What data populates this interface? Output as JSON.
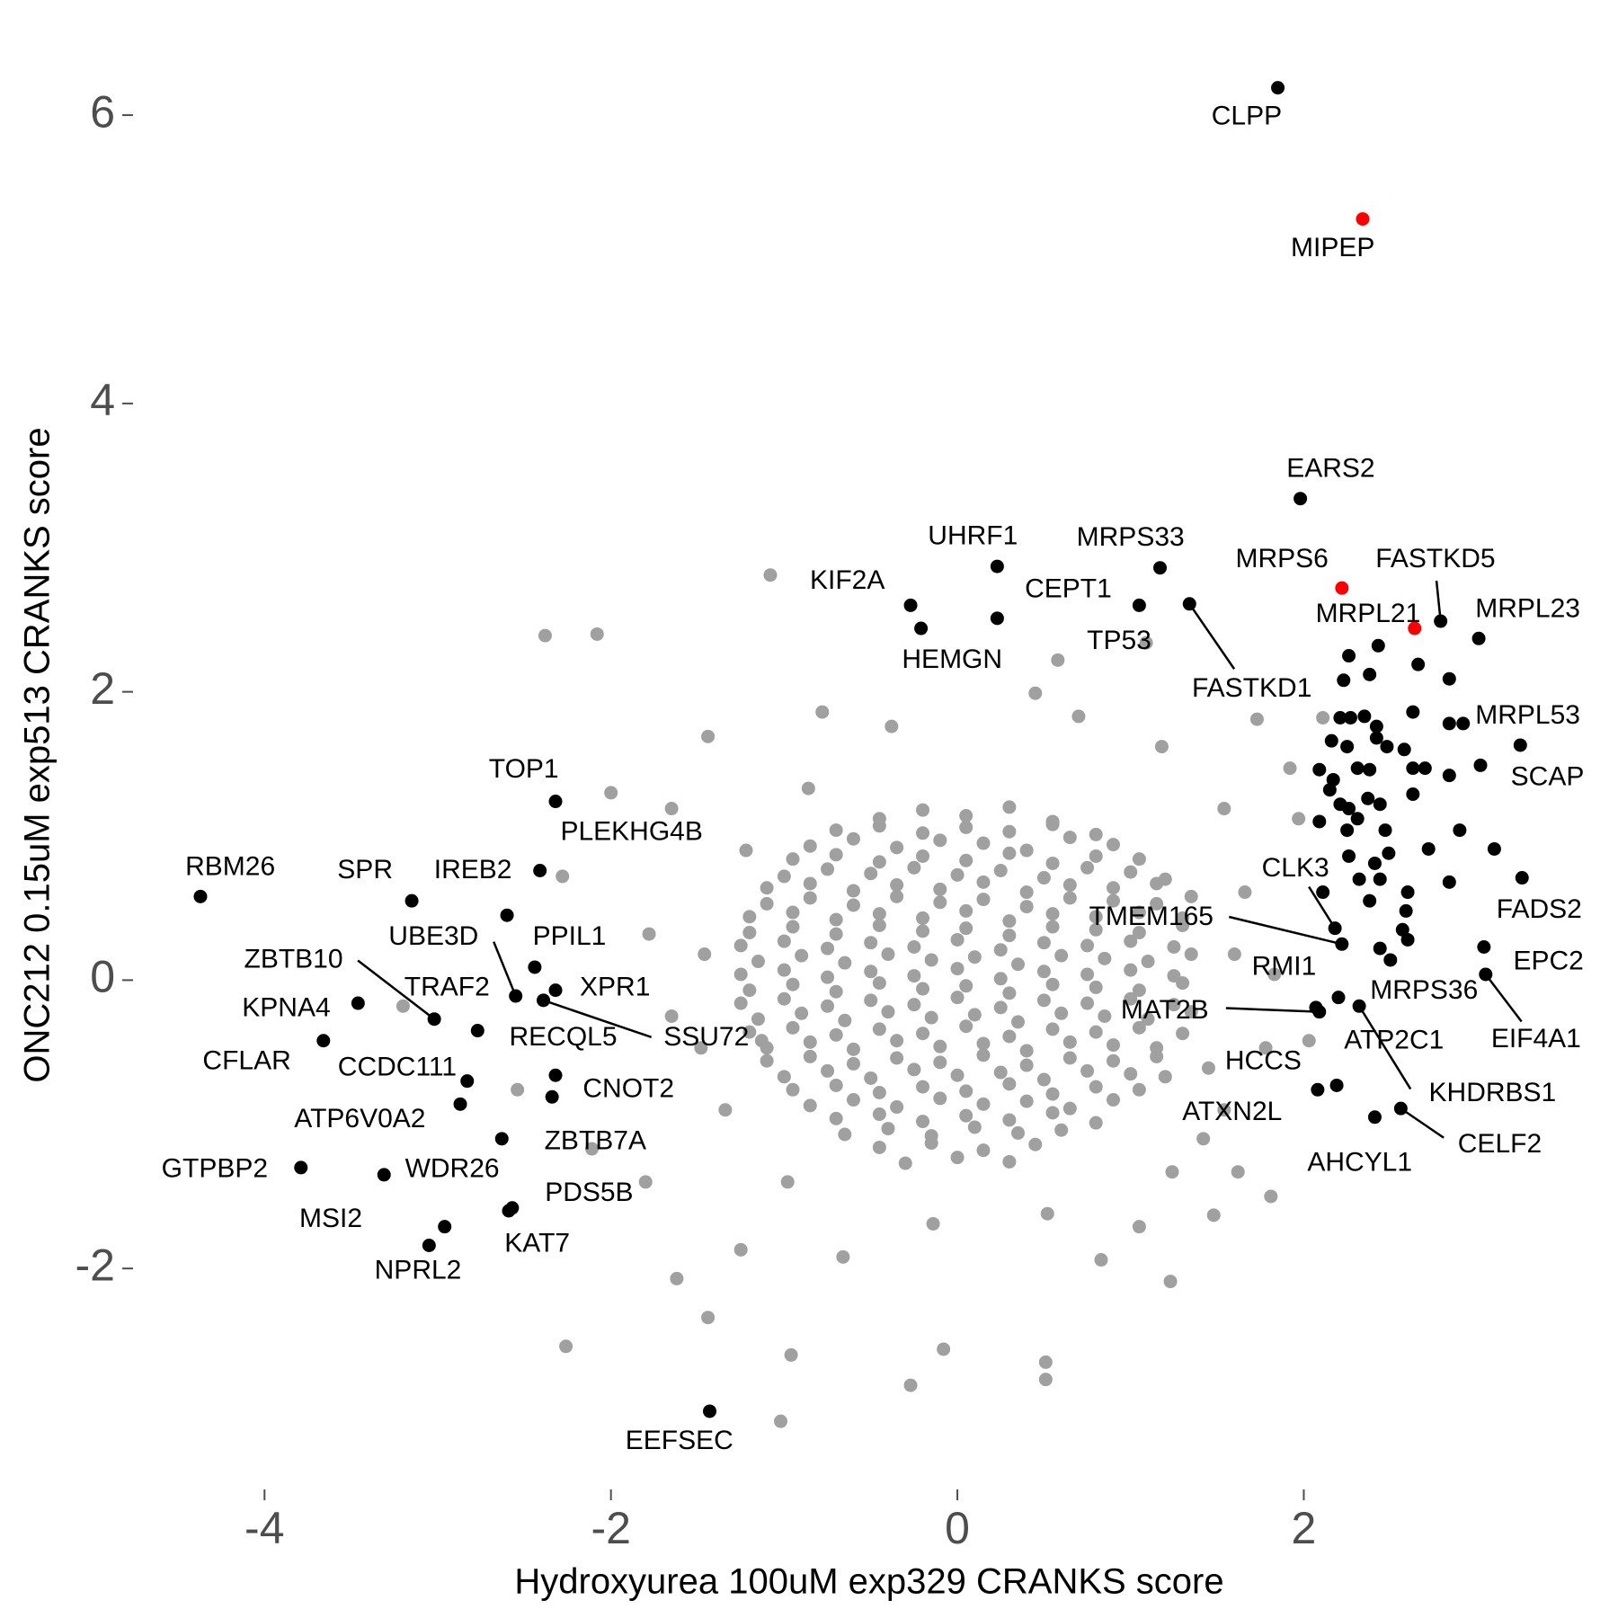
{
  "chart_data": {
    "type": "scatter",
    "xlabel": "Hydroxyurea 100uM exp329 CRANKS score",
    "ylabel": "ONC212 0.15uM exp513 CRANKS score",
    "xlim": [
      -4.7,
      3.65
    ],
    "ylim": [
      -3.4,
      6.5
    ],
    "xticks": [
      -4,
      -2,
      0,
      2
    ],
    "yticks": [
      -2,
      0,
      2,
      4,
      6
    ],
    "grid": false,
    "series": [
      {
        "color": "#a0a0a0",
        "x": [
          -0.45,
          -0.2,
          0.05,
          0.3,
          0.55,
          -0.85,
          -0.6,
          -0.35,
          -0.1,
          0.15,
          0.4,
          0.65,
          0.9,
          -1.0,
          -0.75,
          -0.5,
          -0.25,
          0,
          0.25,
          0.5,
          0.75,
          1.0,
          1.2,
          -1.1,
          -0.85,
          -0.6,
          -0.35,
          -0.1,
          0.15,
          0.4,
          0.65,
          0.9,
          1.15,
          1.35,
          -1.2,
          -0.95,
          -0.7,
          -0.45,
          -0.2,
          0.05,
          0.3,
          0.55,
          0.8,
          1.05,
          1.3,
          -1.15,
          -0.9,
          -0.65,
          -0.4,
          -0.15,
          0.1,
          0.35,
          0.6,
          0.85,
          1.1,
          1.35,
          -1.2,
          -0.95,
          -0.7,
          -0.45,
          -0.2,
          0.05,
          0.3,
          0.55,
          0.8,
          1.05,
          1.3,
          -1.15,
          -0.9,
          -0.65,
          -0.4,
          -0.15,
          0.1,
          0.35,
          0.6,
          0.85,
          1.1,
          1.35,
          -1.1,
          -0.85,
          -0.6,
          -0.35,
          -0.1,
          0.15,
          0.4,
          0.65,
          0.9,
          1.15,
          -1.0,
          -0.75,
          -0.5,
          -0.25,
          0,
          0.25,
          0.5,
          0.75,
          1.0,
          1.2,
          -0.85,
          -0.6,
          -0.35,
          -0.1,
          0.15,
          0.4,
          0.65,
          0.9,
          -0.65,
          -0.4,
          -0.15,
          0.1,
          0.35,
          0.6,
          -0.3,
          0,
          0.3,
          -0.7,
          -0.45,
          -0.2,
          0.05,
          0.3,
          0.55,
          0.8,
          -0.95,
          -0.7,
          -0.45,
          -0.2,
          0.05,
          0.3,
          0.55,
          0.8,
          1.05,
          -1.1,
          -0.85,
          -0.6,
          -0.35,
          -0.1,
          0.15,
          0.4,
          0.65,
          0.9,
          1.15,
          -1.2,
          -0.95,
          -0.7,
          -0.45,
          -0.2,
          0.05,
          0.3,
          0.55,
          0.8,
          1.05,
          1.3,
          -1.25,
          -1.0,
          -0.75,
          -0.5,
          -0.25,
          0,
          0.25,
          0.5,
          0.75,
          1.0,
          1.25,
          -1.25,
          -1.0,
          -0.75,
          -0.5,
          -0.25,
          0,
          0.25,
          0.5,
          0.75,
          1.0,
          1.25,
          -1.25,
          -1.0,
          -0.75,
          -0.5,
          -0.25,
          0,
          0.25,
          0.5,
          0.75,
          1.0,
          1.25,
          -1.2,
          -0.95,
          -0.7,
          -0.45,
          -0.2,
          0.05,
          0.3,
          0.55,
          0.8,
          1.05,
          1.3,
          -1.1,
          -0.85,
          -0.6,
          -0.35,
          -0.1,
          0.15,
          0.4,
          0.65,
          0.9,
          1.15,
          -0.95,
          -0.7,
          -0.45,
          -0.2,
          0.05,
          0.3,
          0.55,
          0.8,
          1.05,
          -0.7,
          -0.45,
          -0.2,
          0.05,
          0.3,
          0.55,
          0.8,
          -0.45,
          -0.15,
          0.15,
          0.45,
          -1.08,
          -2.38,
          -2.08,
          1.09,
          0.58,
          0.45,
          -0.78,
          -1.44,
          1.73,
          1.92,
          -2.0,
          -1.65,
          -2.28,
          -3.2,
          -2.54,
          -2.11,
          -1.8,
          -1.62,
          -2.26,
          -1.44,
          -0.96,
          -1.02,
          -0.27,
          -0.08,
          0.51,
          0.51,
          1.23,
          1.81,
          1.62,
          1.42,
          2.03,
          1.83,
          1.97,
          1.66,
          2.11,
          -1.25,
          -0.66,
          0.83,
          1.48,
          1.05,
          -1.13,
          -1.48,
          -1.78,
          -1.65,
          1.54,
          1.45,
          1.54,
          -1.22,
          -0.86,
          -0.38,
          0.7,
          1.18,
          1.6,
          -1.46,
          -1.34,
          -0.98,
          -0.14,
          0.52,
          1.24,
          1.78
        ],
        "values": [
          1.12,
          1.18,
          1.14,
          1.2,
          1.1,
          0.93,
          0.98,
          0.92,
          0.97,
          0.95,
          0.9,
          0.99,
          0.94,
          0.72,
          0.77,
          0.74,
          0.78,
          0.73,
          0.76,
          0.71,
          0.78,
          0.75,
          0.7,
          0.53,
          0.57,
          0.52,
          0.58,
          0.54,
          0.56,
          0.51,
          0.57,
          0.55,
          0.53,
          0.58,
          0.33,
          0.37,
          0.32,
          0.38,
          0.34,
          0.36,
          0.31,
          0.37,
          0.35,
          0.33,
          0.38,
          0.13,
          0.17,
          0.12,
          0.18,
          0.14,
          0.16,
          0.11,
          0.17,
          0.15,
          0.13,
          0.18,
          -0.07,
          -0.03,
          -0.08,
          -0.02,
          -0.06,
          -0.04,
          -0.09,
          -0.03,
          -0.05,
          -0.07,
          -0.02,
          -0.27,
          -0.23,
          -0.28,
          -0.22,
          -0.26,
          -0.24,
          -0.29,
          -0.23,
          -0.25,
          -0.27,
          -0.22,
          -0.47,
          -0.43,
          -0.48,
          -0.42,
          -0.46,
          -0.44,
          -0.49,
          -0.43,
          -0.45,
          -0.47,
          -0.67,
          -0.63,
          -0.68,
          -0.62,
          -0.66,
          -0.64,
          -0.69,
          -0.63,
          -0.65,
          -0.67,
          -0.87,
          -0.83,
          -0.88,
          -0.82,
          -0.86,
          -0.84,
          -0.89,
          -0.83,
          -1.07,
          -1.03,
          -1.08,
          -1.02,
          -1.06,
          -1.04,
          -1.27,
          -1.23,
          -1.26,
          1.04,
          1.07,
          1.02,
          1.06,
          1.03,
          1.08,
          1.01,
          0.84,
          0.87,
          0.82,
          0.86,
          0.83,
          0.88,
          0.81,
          0.86,
          0.84,
          0.64,
          0.67,
          0.62,
          0.66,
          0.63,
          0.68,
          0.61,
          0.66,
          0.64,
          0.67,
          0.44,
          0.47,
          0.42,
          0.46,
          0.43,
          0.48,
          0.41,
          0.46,
          0.44,
          0.47,
          0.43,
          0.24,
          0.27,
          0.22,
          0.26,
          0.23,
          0.28,
          0.21,
          0.26,
          0.24,
          0.27,
          0.23,
          0.04,
          0.07,
          0.02,
          0.06,
          0.03,
          0.08,
          0.01,
          0.06,
          0.04,
          0.07,
          0.03,
          -0.16,
          -0.13,
          -0.18,
          -0.14,
          -0.17,
          -0.12,
          -0.19,
          -0.14,
          -0.16,
          -0.13,
          -0.17,
          -0.36,
          -0.33,
          -0.38,
          -0.34,
          -0.37,
          -0.32,
          -0.39,
          -0.34,
          -0.36,
          -0.33,
          -0.37,
          -0.56,
          -0.53,
          -0.58,
          -0.54,
          -0.57,
          -0.52,
          -0.59,
          -0.54,
          -0.56,
          -0.53,
          -0.76,
          -0.73,
          -0.78,
          -0.74,
          -0.77,
          -0.72,
          -0.79,
          -0.74,
          -0.76,
          -0.96,
          -0.93,
          -0.98,
          -0.94,
          -0.97,
          -0.92,
          -0.99,
          -1.16,
          -1.13,
          -1.18,
          -1.14,
          2.81,
          2.39,
          2.4,
          2.34,
          2.22,
          1.99,
          1.86,
          1.69,
          1.81,
          1.47,
          1.3,
          1.19,
          0.72,
          -0.18,
          -0.76,
          -1.17,
          -1.4,
          -2.07,
          -2.54,
          -2.34,
          -2.6,
          -3.06,
          -2.81,
          -2.56,
          -2.65,
          -2.77,
          -2.09,
          -1.5,
          -1.33,
          -1.1,
          -0.42,
          0.04,
          1.12,
          0.61,
          1.82,
          -1.87,
          -1.92,
          -1.94,
          -1.63,
          -1.71,
          -0.42,
          -0.47,
          0.32,
          -0.25,
          1.19,
          -0.61,
          -0.9,
          0.9,
          1.33,
          1.76,
          1.83,
          1.62,
          0.18,
          0.18,
          -0.9,
          -1.4,
          -1.69,
          -1.62,
          -1.33,
          -0.47
        ]
      },
      {
        "color": "#000000",
        "x": [
          2.26,
          2.43,
          2.23,
          2.38,
          2.66,
          2.84,
          2.21,
          2.27,
          2.35,
          2.42,
          2.16,
          2.25,
          2.42,
          2.48,
          2.58,
          2.63,
          2.84,
          2.7,
          2.63,
          2.84,
          3.02,
          2.09,
          2.17,
          2.31,
          2.38,
          2.15,
          2.21,
          2.26,
          2.37,
          2.44,
          2.63,
          2.09,
          2.25,
          2.31,
          2.47,
          2.9,
          2.72,
          2.26,
          2.41,
          2.49,
          2.84,
          3.1,
          2.32,
          2.44,
          2.6,
          2.59,
          2.57,
          2.6,
          2.11,
          2.38,
          2.5
        ],
        "values": [
          2.25,
          2.32,
          2.08,
          2.12,
          2.19,
          2.09,
          1.82,
          1.82,
          1.83,
          1.76,
          1.66,
          1.62,
          1.68,
          1.62,
          1.6,
          1.86,
          1.78,
          1.47,
          1.47,
          1.42,
          1.49,
          1.46,
          1.39,
          1.47,
          1.46,
          1.32,
          1.22,
          1.19,
          1.26,
          1.22,
          1.29,
          1.1,
          1.04,
          1.12,
          1.04,
          1.04,
          0.91,
          0.86,
          0.81,
          0.88,
          0.68,
          0.91,
          0.7,
          0.7,
          0.61,
          0.48,
          0.35,
          0.28,
          0.61,
          0.55,
          0.14
        ]
      },
      {
        "color": "#000000",
        "x": [
          1.85,
          1.98,
          0.23,
          1.17,
          -0.27,
          0.23,
          1.05,
          1.34,
          -0.21,
          2.79,
          3.01,
          2.92,
          3.25,
          3.26,
          3.04,
          3.05,
          2.18,
          2.22,
          2.44,
          2.2,
          2.09,
          2.07,
          2.32,
          2.08,
          2.19,
          2.41,
          2.56,
          -2.32,
          -2.41,
          -4.37,
          -3.15,
          -2.6,
          -2.55,
          -2.44,
          -3.02,
          -2.77,
          -2.32,
          -2.39,
          -2.32,
          -2.34,
          -3.46,
          -3.66,
          -2.83,
          -2.87,
          -2.63,
          -3.79,
          -3.31,
          -2.57,
          -2.59,
          -2.96,
          -3.05,
          -1.43
        ],
        "values": [
          6.19,
          3.34,
          2.87,
          2.86,
          2.6,
          2.51,
          2.6,
          2.61,
          2.44,
          2.49,
          2.37,
          1.78,
          1.63,
          0.71,
          0.23,
          0.04,
          0.36,
          0.25,
          0.22,
          -0.12,
          -0.22,
          -0.19,
          -0.18,
          -0.76,
          -0.73,
          -0.95,
          -0.89,
          1.24,
          0.76,
          0.58,
          0.55,
          0.45,
          -0.11,
          0.09,
          -0.27,
          -0.35,
          -0.07,
          -0.14,
          -0.66,
          -0.81,
          -0.16,
          -0.42,
          -0.7,
          -0.86,
          -1.1,
          -1.3,
          -1.35,
          -1.58,
          -1.6,
          -1.71,
          -1.84,
          -2.99
        ],
        "labels": [
          "CLPP",
          "EARS2",
          "UHRF1",
          "MRPS33",
          "KIF2A",
          "CEPT1",
          "TP53",
          "FASTKD1",
          "HEMGN",
          "FASTKD5",
          "MRPL23",
          "MRPL53",
          "SCAP",
          "FADS2",
          "EPC2",
          "EIF4A1",
          "CLK3",
          "TMEM165",
          "RMI1",
          "MRPS36",
          "MAT2B",
          "ATP2C1",
          "KHDRBS1",
          "HCCS",
          "ATXN2L",
          "AHCYL1",
          "CELF2",
          "TOP1",
          "PLEKHG4B",
          "RBM26",
          "SPR",
          "IREB2",
          "UBE3D",
          "PPIL1",
          "ZBTB10",
          "TRAF2",
          "XPR1",
          "SSU72",
          "RECQL5",
          "CNOT2",
          "KPNA4",
          "CFLAR",
          "CCDC111",
          "ATP6V0A2",
          "ZBTB7A",
          "GTPBP2",
          "WDR26",
          "PDS5B",
          "KAT7",
          "MSI2",
          "NPRL2",
          "EEFSEC"
        ]
      },
      {
        "color": "#ff0000",
        "x": [
          2.34,
          2.22,
          2.64
        ],
        "values": [
          5.28,
          2.72,
          2.44
        ],
        "labels": [
          "MIPEP",
          "MRPS6",
          "MRPL21"
        ]
      }
    ]
  }
}
